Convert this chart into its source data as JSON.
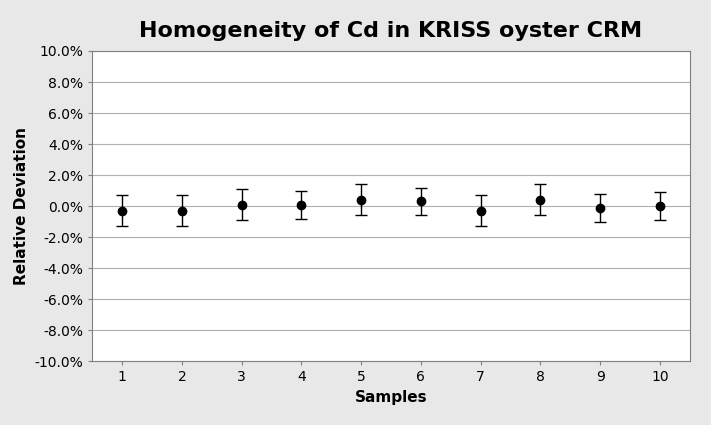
{
  "title": "Homogeneity of Cd in KRISS oyster CRM",
  "xlabel": "Samples",
  "ylabel": "Relative Deviation",
  "x": [
    1,
    2,
    3,
    4,
    5,
    6,
    7,
    8,
    9,
    10
  ],
  "y": [
    -0.003,
    -0.003,
    0.001,
    0.001,
    0.004,
    0.003,
    -0.003,
    0.004,
    -0.001,
    0.0
  ],
  "yerr": [
    0.01,
    0.01,
    0.01,
    0.009,
    0.01,
    0.009,
    0.01,
    0.01,
    0.009,
    0.009
  ],
  "ylim": [
    -0.1,
    0.1
  ],
  "yticks": [
    -0.1,
    -0.08,
    -0.06,
    -0.04,
    -0.02,
    0.0,
    0.02,
    0.04,
    0.06,
    0.08,
    0.1
  ],
  "xlim": [
    0.5,
    10.5
  ],
  "figure_bg_color": "#e8e8e8",
  "plot_bg_color": "#ffffff",
  "grid_color": "#b0b0b0",
  "marker_color": "#000000",
  "spine_color": "#808080",
  "title_fontsize": 16,
  "label_fontsize": 11,
  "tick_fontsize": 10
}
